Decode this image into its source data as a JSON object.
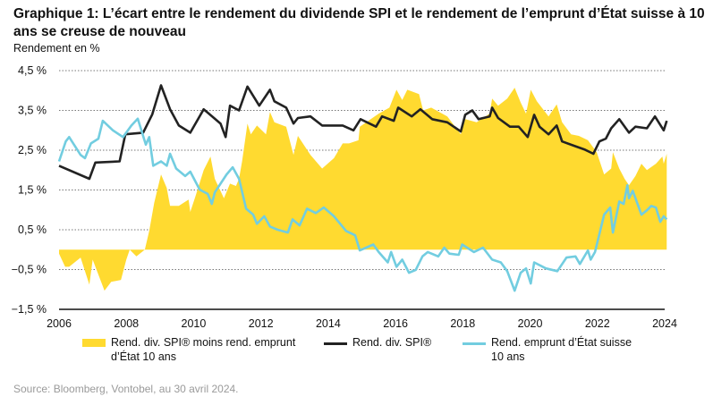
{
  "title": "Graphique 1: L’écart entre le rendement du dividende SPI et le rendement de l’emprunt d’État suisse à 10 ans se creuse de nouveau",
  "source": "Source: Bloomberg, Vontobel, au 30 avril 2024.",
  "colors": {
    "spread": "#FFDA30",
    "dividend": "#222222",
    "bond": "#72CDE0"
  },
  "chart_data": {
    "type": "line",
    "ylabel": "Rendement en %",
    "xlim": [
      2006,
      2024
    ],
    "ylim": [
      -1.5,
      4.5
    ],
    "xticks": [
      "2006",
      "2008",
      "2010",
      "2012",
      "2014",
      "2016",
      "2018",
      "2020",
      "2022",
      "2024"
    ],
    "yticks": [
      {
        "value": 4.5,
        "label": "4,5 %"
      },
      {
        "value": 3.5,
        "label": "3,5 %"
      },
      {
        "value": 2.5,
        "label": "2,5 %"
      },
      {
        "value": 1.5,
        "label": "1,5 %"
      },
      {
        "value": 0.5,
        "label": "0,5 %"
      },
      {
        "value": -0.5,
        "label": "−0,5 %"
      },
      {
        "value": -1.5,
        "label": "−1,5 %"
      }
    ],
    "grid": "horizontal dotted",
    "legend_placement": "bottom",
    "series": [
      {
        "name": "Rend. div. SPI® moins rend. emprunt d’État 10 ans",
        "kind": "area",
        "x": [
          2006,
          2006.18,
          2006.3,
          2006.64,
          2006.9,
          2007.0,
          2007.35,
          2007.55,
          2007.84,
          2008.0,
          2008.1,
          2008.3,
          2008.55,
          2008.68,
          2008.83,
          2009.03,
          2009.2,
          2009.3,
          2009.56,
          2009.85,
          2009.9,
          2010.05,
          2010.3,
          2010.5,
          2010.63,
          2010.9,
          2011.08,
          2011.26,
          2011.35,
          2011.44,
          2011.6,
          2011.7,
          2011.88,
          2012.15,
          2012.27,
          2012.4,
          2012.75,
          2012.97,
          2013.1,
          2013.47,
          2013.82,
          2014.17,
          2014.43,
          2014.62,
          2014.9,
          2014.94,
          2015.5,
          2015.82,
          2016.03,
          2016.2,
          2016.35,
          2016.7,
          2016.82,
          2017.06,
          2017.54,
          2017.94,
          2018.07,
          2018.41,
          2018.8,
          2018.87,
          2019.05,
          2019.32,
          2019.54,
          2019.72,
          2019.88,
          2020.02,
          2020.2,
          2020.55,
          2020.79,
          2020.95,
          2021.22,
          2021.45,
          2021.72,
          2021.98,
          2022.2,
          2022.41,
          2022.46,
          2022.65,
          2022.81,
          2022.94,
          2023.13,
          2023.31,
          2023.47,
          2023.74,
          2023.93,
          2023.97,
          2024.06
        ],
        "values": [
          -0.1,
          -0.43,
          -0.43,
          -0.2,
          -0.88,
          -0.25,
          -1.03,
          -0.81,
          -0.76,
          -0.25,
          0,
          -0.17,
          0,
          0.47,
          1.18,
          1.89,
          1.55,
          1.1,
          1.1,
          1.26,
          0.95,
          1.33,
          2.0,
          2.34,
          1.78,
          1.29,
          1.66,
          1.6,
          1.78,
          2.22,
          3.17,
          2.9,
          3.12,
          2.9,
          3.46,
          3.2,
          3.09,
          2.38,
          2.86,
          2.38,
          2.04,
          2.3,
          2.67,
          2.67,
          2.75,
          3.09,
          3.42,
          3.57,
          4.02,
          3.76,
          4.02,
          3.91,
          3.5,
          3.57,
          3.35,
          2.9,
          3.28,
          3.2,
          3.42,
          3.8,
          3.62,
          3.8,
          4.07,
          3.7,
          3.42,
          4.02,
          3.73,
          3.35,
          3.65,
          3.2,
          2.9,
          2.86,
          2.75,
          2.45,
          1.89,
          2.04,
          2.45,
          2.04,
          1.78,
          1.62,
          1.85,
          2.16,
          2.0,
          2.16,
          2.34,
          2.16,
          2.41
        ]
      },
      {
        "name": "Rend. div. SPI®",
        "kind": "line",
        "x": [
          2006,
          2006.9,
          2007.08,
          2007.8,
          2007.97,
          2008.5,
          2008.77,
          2009.03,
          2009.3,
          2009.56,
          2009.9,
          2010.3,
          2010.8,
          2010.95,
          2011.08,
          2011.35,
          2011.6,
          2011.95,
          2012.27,
          2012.4,
          2012.75,
          2012.97,
          2013.1,
          2013.47,
          2013.82,
          2014.43,
          2014.75,
          2014.96,
          2015.42,
          2015.6,
          2015.95,
          2016.08,
          2016.48,
          2016.74,
          2017.09,
          2017.54,
          2017.94,
          2018.07,
          2018.28,
          2018.47,
          2018.8,
          2018.87,
          2019.05,
          2019.4,
          2019.66,
          2019.93,
          2020.12,
          2020.28,
          2020.55,
          2020.79,
          2020.95,
          2021.35,
          2021.61,
          2021.88,
          2022.06,
          2022.25,
          2022.41,
          2022.65,
          2022.94,
          2023.13,
          2023.47,
          2023.71,
          2023.97,
          2024.06
        ],
        "values": [
          2.11,
          1.78,
          2.19,
          2.22,
          2.9,
          2.94,
          3.4,
          4.13,
          3.53,
          3.12,
          2.94,
          3.53,
          3.17,
          2.83,
          3.62,
          3.5,
          4.1,
          3.62,
          4.02,
          3.73,
          3.57,
          3.17,
          3.31,
          3.35,
          3.12,
          3.12,
          3.0,
          3.28,
          3.09,
          3.35,
          3.24,
          3.57,
          3.35,
          3.53,
          3.28,
          3.2,
          2.97,
          3.39,
          3.5,
          3.28,
          3.35,
          3.57,
          3.31,
          3.09,
          3.09,
          2.83,
          3.39,
          3.09,
          2.9,
          3.12,
          2.72,
          2.6,
          2.52,
          2.41,
          2.72,
          2.79,
          3.05,
          3.28,
          2.94,
          3.09,
          3.05,
          3.35,
          3.0,
          3.24
        ]
      },
      {
        "name": "Rend. emprunt d’État suisse 10 ans",
        "kind": "line",
        "x": [
          2006,
          2006.2,
          2006.3,
          2006.64,
          2006.77,
          2006.95,
          2007.17,
          2007.3,
          2007.6,
          2007.9,
          2008.15,
          2008.34,
          2008.58,
          2008.68,
          2008.8,
          2009.03,
          2009.2,
          2009.3,
          2009.48,
          2009.75,
          2009.9,
          2010.18,
          2010.42,
          2010.54,
          2010.63,
          2010.98,
          2011.16,
          2011.35,
          2011.56,
          2011.77,
          2011.88,
          2012.1,
          2012.27,
          2012.5,
          2012.8,
          2012.94,
          2013.15,
          2013.37,
          2013.63,
          2013.87,
          2014.17,
          2014.53,
          2014.8,
          2014.94,
          2015.34,
          2015.5,
          2015.77,
          2015.87,
          2016.03,
          2016.2,
          2016.4,
          2016.6,
          2016.8,
          2016.96,
          2017.27,
          2017.45,
          2017.6,
          2017.88,
          2017.98,
          2018.33,
          2018.6,
          2018.87,
          2019.13,
          2019.32,
          2019.54,
          2019.72,
          2019.88,
          2020.02,
          2020.12,
          2020.47,
          2020.81,
          2021.08,
          2021.35,
          2021.48,
          2021.72,
          2021.8,
          2021.93,
          2022.2,
          2022.38,
          2022.46,
          2022.65,
          2022.78,
          2022.89,
          2022.94,
          2023.05,
          2023.31,
          2023.47,
          2023.6,
          2023.74,
          2023.87,
          2023.97,
          2024.06
        ],
        "values": [
          2.22,
          2.72,
          2.83,
          2.38,
          2.3,
          2.67,
          2.79,
          3.24,
          3.0,
          2.83,
          3.12,
          3.29,
          2.64,
          2.83,
          2.11,
          2.22,
          2.11,
          2.41,
          2.04,
          1.85,
          1.96,
          1.51,
          1.4,
          1.15,
          1.44,
          1.89,
          2.07,
          1.78,
          1.03,
          0.88,
          0.65,
          0.84,
          0.58,
          0.5,
          0.43,
          0.76,
          0.61,
          1.03,
          0.92,
          1.06,
          0.84,
          0.47,
          0.36,
          -0.02,
          0.13,
          -0.06,
          -0.32,
          -0.06,
          -0.43,
          -0.25,
          -0.58,
          -0.51,
          -0.17,
          -0.06,
          -0.17,
          0.05,
          -0.1,
          -0.13,
          0.13,
          -0.06,
          0.05,
          -0.25,
          -0.32,
          -0.54,
          -1.03,
          -0.58,
          -0.47,
          -0.85,
          -0.32,
          -0.47,
          -0.54,
          -0.2,
          -0.17,
          -0.36,
          -0.02,
          -0.25,
          -0.06,
          0.88,
          1.06,
          0.43,
          1.21,
          1.15,
          1.62,
          1.29,
          1.48,
          0.88,
          0.99,
          1.1,
          1.06,
          0.7,
          0.84,
          0.76
        ]
      }
    ]
  }
}
